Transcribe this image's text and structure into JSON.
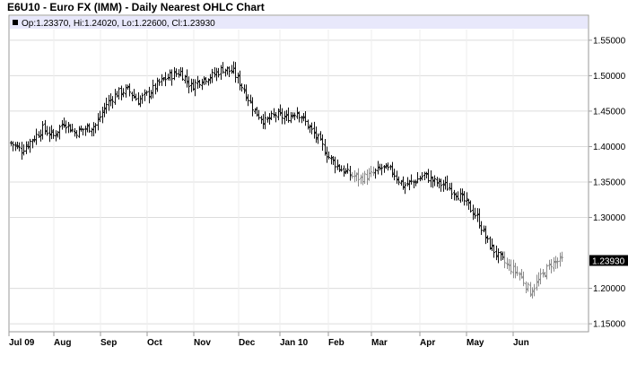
{
  "chart_data": {
    "type": "ohlc",
    "title": "E6U10 - Euro FX (IMM) - Daily Nearest OHLC Chart",
    "info": "Op:1.23370, Hi:1.24020, Lo:1.22600, Cl:1.23930",
    "last_value": "1.23930",
    "last_close": 1.2393,
    "ylim": [
      1.14,
      1.565
    ],
    "y_ticks": [
      1.15,
      1.2,
      1.3,
      1.35,
      1.4,
      1.45,
      1.5,
      1.55
    ],
    "y_tick_labels": [
      "1.15000",
      "1.20000",
      "1.30000",
      "1.35000",
      "1.40000",
      "1.45000",
      "1.50000",
      "1.55000"
    ],
    "x_months": [
      "Jul 09",
      "Aug",
      "Sep",
      "Oct",
      "Nov",
      "Dec",
      "Jan 10",
      "Feb",
      "Mar",
      "Apr",
      "May",
      "Jun"
    ],
    "close_anchors": [
      [
        0,
        1.405
      ],
      [
        5,
        1.395
      ],
      [
        10,
        1.41
      ],
      [
        15,
        1.425
      ],
      [
        20,
        1.415
      ],
      [
        25,
        1.435
      ],
      [
        30,
        1.42
      ],
      [
        35,
        1.425
      ],
      [
        40,
        1.43
      ],
      [
        45,
        1.46
      ],
      [
        50,
        1.475
      ],
      [
        55,
        1.48
      ],
      [
        60,
        1.465
      ],
      [
        65,
        1.475
      ],
      [
        70,
        1.49
      ],
      [
        75,
        1.5
      ],
      [
        80,
        1.505
      ],
      [
        85,
        1.485
      ],
      [
        90,
        1.495
      ],
      [
        95,
        1.5
      ],
      [
        100,
        1.51
      ],
      [
        105,
        1.505
      ],
      [
        110,
        1.48
      ],
      [
        115,
        1.45
      ],
      [
        120,
        1.435
      ],
      [
        125,
        1.445
      ],
      [
        130,
        1.44
      ],
      [
        135,
        1.45
      ],
      [
        140,
        1.43
      ],
      [
        145,
        1.41
      ],
      [
        150,
        1.385
      ],
      [
        155,
        1.37
      ],
      [
        160,
        1.36
      ],
      [
        165,
        1.355
      ],
      [
        170,
        1.36
      ],
      [
        175,
        1.37
      ],
      [
        180,
        1.365
      ],
      [
        185,
        1.345
      ],
      [
        190,
        1.35
      ],
      [
        195,
        1.36
      ],
      [
        200,
        1.35
      ],
      [
        205,
        1.345
      ],
      [
        210,
        1.335
      ],
      [
        215,
        1.32
      ],
      [
        220,
        1.3
      ],
      [
        225,
        1.265
      ],
      [
        230,
        1.245
      ],
      [
        235,
        1.23
      ],
      [
        240,
        1.22
      ],
      [
        245,
        1.195
      ],
      [
        250,
        1.215
      ],
      [
        255,
        1.235
      ],
      [
        260,
        1.24
      ]
    ]
  }
}
